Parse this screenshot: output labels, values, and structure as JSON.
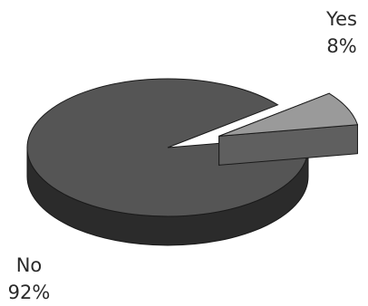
{
  "chart_data": {
    "type": "pie",
    "style": "3d-exploded",
    "slices": [
      {
        "name": "Yes",
        "value": 8,
        "percent_label": "8%",
        "color": "#9a9a9a",
        "exploded": true
      },
      {
        "name": "No",
        "value": 92,
        "percent_label": "92%",
        "color": "#555555",
        "exploded": false
      }
    ],
    "side_colors": {
      "Yes": "#5f5f5f",
      "No": "#2b2b2b"
    },
    "title": "",
    "legend": "none",
    "label_position": "outside"
  }
}
